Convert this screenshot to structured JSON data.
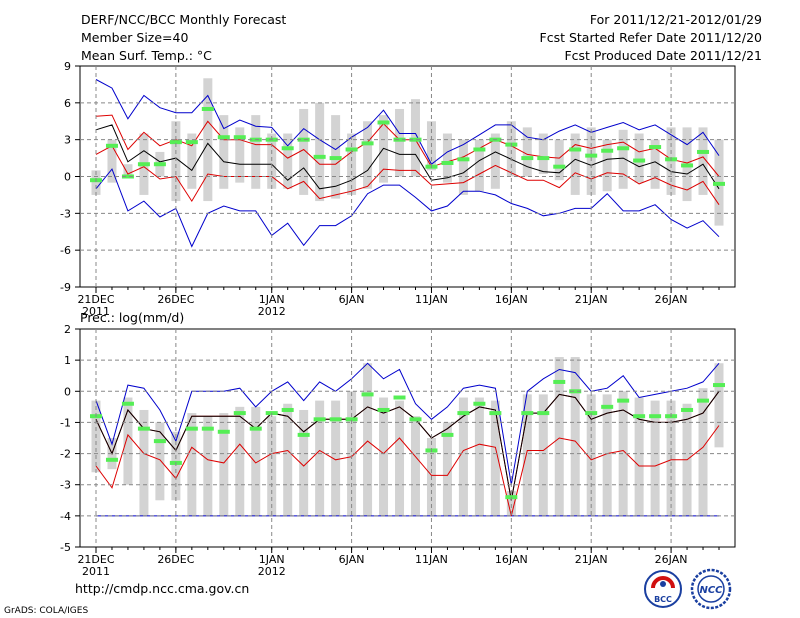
{
  "header": {
    "left1": "DERF/NCC/BCC Monthly Forecast",
    "left2": "Member Size=40",
    "left3": "Mean Surf. Temp.: °C",
    "right1": "For 2011/12/21-2012/01/29",
    "right2": "Fcst Started Refer Date 2011/12/20",
    "right3": "Fcst Produced Date 2011/12/21"
  },
  "footer": {
    "url": "http://cmdp.ncc.cma.gov.cn",
    "credit": "GrADS: COLA/IGES",
    "logo1_text": "BCC",
    "logo2_text": "NCC"
  },
  "colors": {
    "box": "#d3d3d3",
    "mean": "#55ee55",
    "median": "#000000",
    "inner": "#dd0000",
    "outer": "#0000cc"
  },
  "chart_data": [
    {
      "type": "line",
      "title": "Mean Surf. Temp.: °C",
      "ylim": [
        -9,
        9
      ],
      "yticks": [
        -9,
        -6,
        -3,
        0,
        3,
        6,
        9
      ],
      "x_tick_labels": [
        {
          "day": 0,
          "label": "21DEC",
          "sub": "2011"
        },
        {
          "day": 5,
          "label": "26DEC",
          "sub": ""
        },
        {
          "day": 11,
          "label": "1JAN",
          "sub": "2012"
        },
        {
          "day": 16,
          "label": "6JAN",
          "sub": ""
        },
        {
          "day": 21,
          "label": "11JAN",
          "sub": ""
        },
        {
          "day": 26,
          "label": "16JAN",
          "sub": ""
        },
        {
          "day": 31,
          "label": "21JAN",
          "sub": ""
        },
        {
          "day": 36,
          "label": "26JAN",
          "sub": ""
        }
      ],
      "days": 40,
      "box_low": [
        -1.5,
        -0.5,
        0,
        -1.5,
        0,
        -2,
        -1,
        -2,
        -1,
        -0.5,
        -1,
        -1,
        -1,
        -1.5,
        -2,
        -1.8,
        -1.5,
        -1,
        -0.5,
        0,
        0,
        0.5,
        -0.5,
        -1.5,
        -1.2,
        -1,
        0,
        0,
        0.2,
        -0.3,
        -1.5,
        -1.5,
        -1.2,
        -1,
        -0.5,
        -1,
        -1.5,
        -2,
        -1.5,
        -4
      ],
      "box_high": [
        0.5,
        3,
        1,
        3.5,
        2,
        4.5,
        3.5,
        8,
        5,
        4,
        5,
        3.5,
        3.5,
        5.5,
        6,
        5,
        3.5,
        4.5,
        5,
        5.5,
        6.3,
        4.5,
        3.5,
        3,
        3,
        3.5,
        4.5,
        4,
        3.5,
        3,
        3.5,
        4,
        3,
        3.8,
        3.5,
        3,
        4,
        4,
        4,
        3
      ],
      "mean": [
        -0.3,
        2.5,
        0,
        1,
        1,
        2.8,
        2.8,
        5.5,
        3.2,
        3.2,
        3,
        3,
        2.3,
        3,
        1.6,
        1.5,
        2.2,
        2.7,
        4.4,
        3,
        3,
        0.8,
        1.1,
        1.4,
        2.2,
        3,
        2.6,
        1.5,
        1.5,
        0.8,
        2.2,
        1.7,
        2.1,
        2.3,
        1.3,
        2.4,
        1.4,
        0.9,
        2,
        -0.6
      ],
      "median": [
        3.8,
        4.2,
        1.2,
        2.1,
        1.2,
        1.5,
        0.5,
        2.7,
        1.2,
        1,
        1,
        1,
        -0.3,
        0.7,
        -1,
        -0.8,
        -0.3,
        0.5,
        2.3,
        1.8,
        1.8,
        -0.3,
        -0.1,
        0.3,
        1.3,
        2,
        1.4,
        0.8,
        0.4,
        0.3,
        1.4,
        0.9,
        1.4,
        1.5,
        0.8,
        1.2,
        0.4,
        0.2,
        1,
        -1
      ],
      "inner_high": [
        4.9,
        5,
        2.2,
        3.6,
        2.5,
        3,
        2.5,
        4.5,
        3,
        3,
        2.6,
        2.6,
        1.5,
        2.2,
        1,
        1,
        2,
        2.8,
        4.3,
        3,
        3,
        0.8,
        1.2,
        1.6,
        2.3,
        3,
        2.5,
        1.8,
        1.6,
        1.5,
        2.6,
        2.3,
        2.6,
        2.8,
        2,
        2.3,
        1.4,
        1.1,
        1.6,
        0
      ],
      "inner_low": [
        1.8,
        2.5,
        0.2,
        0.8,
        -0.2,
        0,
        -2,
        0.2,
        0,
        0,
        0,
        0,
        -1,
        -0.4,
        -1.8,
        -1.5,
        -1.2,
        -0.8,
        0.6,
        0.5,
        0.5,
        -0.7,
        -0.6,
        -0.5,
        0.2,
        0.9,
        0.3,
        -0.3,
        -0.3,
        -0.9,
        0.3,
        -0.2,
        0.3,
        0.2,
        -0.6,
        -0.1,
        -0.7,
        -1.1,
        -0.4,
        -2.3
      ],
      "outer_high": [
        7.9,
        7.2,
        4.7,
        6.6,
        5.6,
        5.2,
        5.2,
        6.6,
        3.9,
        4.6,
        4.1,
        4,
        2.5,
        3.9,
        3,
        2.2,
        3.2,
        4,
        5.4,
        3.5,
        3.5,
        1,
        2,
        2.6,
        3.4,
        4.2,
        4.2,
        3.2,
        3,
        3.7,
        4.2,
        3.6,
        4,
        4.4,
        3.8,
        4.2,
        3.4,
        2.6,
        3.6,
        1.7
      ],
      "outer_low": [
        -1,
        0.6,
        -2.8,
        -2,
        -3.3,
        -2.6,
        -5.7,
        -3,
        -2.4,
        -2.8,
        -2.8,
        -4.8,
        -3.8,
        -5.6,
        -4,
        -4,
        -3.2,
        -1.4,
        -0.7,
        -0.7,
        -1.7,
        -2.8,
        -2.4,
        -1.2,
        -1.2,
        -1.5,
        -2.2,
        -2.6,
        -3.2,
        -3,
        -2.6,
        -2.6,
        -1.4,
        -2.8,
        -2.8,
        -2.3,
        -3.5,
        -4.2,
        -3.6,
        -4.9
      ]
    },
    {
      "type": "line",
      "title": "Prec.: log(mm/d)",
      "ylim": [
        -5,
        2
      ],
      "yticks": [
        -5,
        -4,
        -3,
        -2,
        -1,
        0,
        1,
        2
      ],
      "x_tick_labels": [
        {
          "day": 0,
          "label": "21DEC",
          "sub": "2011"
        },
        {
          "day": 5,
          "label": "26DEC",
          "sub": ""
        },
        {
          "day": 11,
          "label": "1JAN",
          "sub": "2012"
        },
        {
          "day": 16,
          "label": "6JAN",
          "sub": ""
        },
        {
          "day": 21,
          "label": "11JAN",
          "sub": ""
        },
        {
          "day": 26,
          "label": "16JAN",
          "sub": ""
        },
        {
          "day": 31,
          "label": "21JAN",
          "sub": ""
        },
        {
          "day": 36,
          "label": "26JAN",
          "sub": ""
        }
      ],
      "days": 40,
      "box_low": [
        -2.6,
        -2.5,
        -3,
        -4,
        -3.5,
        -3.5,
        -4,
        -4,
        -4,
        -4,
        -4,
        -4,
        -4,
        -4,
        -4,
        -4,
        -4,
        -4,
        -4,
        -4,
        -4,
        -4,
        -4,
        -4,
        -4,
        -4,
        -4,
        -4,
        -4,
        -4,
        -4,
        -4,
        -4,
        -4,
        -4,
        -4,
        -4,
        -4,
        -4,
        -1.8
      ],
      "box_high": [
        -0.3,
        -1.5,
        -0.2,
        -0.6,
        -1,
        -1.3,
        -0.7,
        -0.8,
        -0.7,
        -0.5,
        -0.5,
        -0.8,
        -0.4,
        -0.6,
        -0.3,
        -0.3,
        0,
        0.9,
        -0.2,
        -0.3,
        -0.8,
        -1.5,
        -1,
        -0.2,
        -0.2,
        -0.3,
        -3.2,
        -0.1,
        -0.1,
        1.1,
        1.1,
        -0.1,
        -0.1,
        0,
        -0.2,
        -0.3,
        -0.3,
        -0.4,
        0.1,
        0.9
      ],
      "mean": [
        -0.8,
        -2.2,
        -0.4,
        -1.2,
        -1.6,
        -2.3,
        -1.2,
        -1.2,
        -1.3,
        -0.7,
        -1.2,
        -0.7,
        -0.6,
        -1.4,
        -0.9,
        -0.9,
        -0.9,
        -0.1,
        -0.6,
        -0.2,
        -0.9,
        -1.9,
        -1.4,
        -0.7,
        -0.4,
        -0.7,
        -3.4,
        -0.7,
        -0.7,
        0.3,
        0,
        -0.7,
        -0.5,
        -0.3,
        -0.8,
        -0.8,
        -0.8,
        -0.6,
        -0.3,
        0.2
      ],
      "median": [
        -0.9,
        -2,
        -0.6,
        -1.2,
        -1.3,
        -1.9,
        -0.8,
        -0.8,
        -0.8,
        -0.8,
        -1.2,
        -0.7,
        -0.8,
        -1.3,
        -0.9,
        -0.9,
        -0.9,
        -0.5,
        -0.7,
        -0.5,
        -0.9,
        -1.5,
        -1.2,
        -0.8,
        -0.5,
        -0.6,
        -3.5,
        -0.7,
        -0.7,
        -0.1,
        -0.2,
        -0.9,
        -0.7,
        -0.6,
        -0.9,
        -1,
        -1,
        -0.9,
        -0.7,
        0
      ],
      "inner_high": [
        -0.9,
        -2,
        -0.6,
        -1.2,
        -1.3,
        -1.9,
        -0.8,
        -0.8,
        -0.8,
        -0.8,
        -1.2,
        -0.7,
        -0.8,
        -1.3,
        -0.9,
        -0.9,
        -0.9,
        -0.5,
        -0.7,
        -0.5,
        -0.9,
        -1.5,
        -1.2,
        -0.8,
        -0.5,
        -0.6,
        -3.5,
        -0.7,
        -0.7,
        -0.1,
        -0.2,
        -0.9,
        -0.7,
        -0.6,
        -0.9,
        -1,
        -1,
        -0.9,
        -0.7,
        0
      ],
      "inner_low": [
        -2.4,
        -3.1,
        -1.4,
        -2,
        -2.2,
        -2.8,
        -1.8,
        -2.2,
        -2.3,
        -1.7,
        -2.3,
        -2,
        -1.9,
        -2.4,
        -1.9,
        -2.2,
        -2.1,
        -1.6,
        -2,
        -1.5,
        -2.1,
        -2.7,
        -2.7,
        -1.9,
        -1.7,
        -1.8,
        -4,
        -1.9,
        -1.9,
        -1.5,
        -1.6,
        -2.2,
        -2,
        -1.9,
        -2.4,
        -2.4,
        -2.2,
        -2.2,
        -1.8,
        -1.1
      ],
      "outer_high": [
        -0.3,
        -1.7,
        0.2,
        0.1,
        -0.6,
        -1.6,
        0,
        0,
        0,
        0.1,
        -0.5,
        0,
        0.3,
        -0.3,
        0.3,
        0,
        0.4,
        0.9,
        0.4,
        0.7,
        -0.4,
        -0.9,
        -0.5,
        0.1,
        0.2,
        0.1,
        -3,
        0,
        0.4,
        0.7,
        0.6,
        0,
        0.1,
        0.5,
        -0.2,
        -0.1,
        0,
        0.1,
        0.3,
        0.9
      ],
      "outer_low": [
        -4,
        -4,
        -4,
        -4,
        -4,
        -4,
        -4,
        -4,
        -4,
        -4,
        -4,
        -4,
        -4,
        -4,
        -4,
        -4,
        -4,
        -4,
        -4,
        -4,
        -4,
        -4,
        -4,
        -4,
        -4,
        -4,
        -4,
        -4,
        -4,
        -4,
        -4,
        -4,
        -4,
        -4,
        -4,
        -4,
        -4,
        -4,
        -4,
        -4
      ]
    }
  ]
}
